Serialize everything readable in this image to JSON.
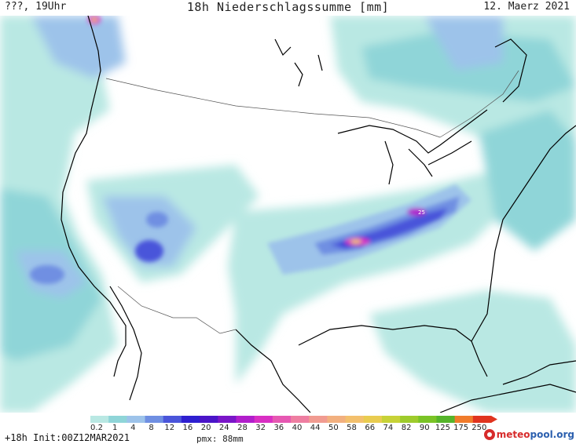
{
  "header": {
    "left": "???, 19Uhr",
    "title": "18h Niederschlagssumme [mm]",
    "date": "12. Maerz 2021"
  },
  "map": {
    "cell_label": "25"
  },
  "legend": {
    "labels": [
      "0.2",
      "1",
      "4",
      "8",
      "12",
      "16",
      "20",
      "24",
      "28",
      "32",
      "36",
      "40",
      "44",
      "50",
      "58",
      "66",
      "74",
      "82",
      "90",
      "125",
      "175",
      "250"
    ],
    "colors": [
      "#b9e8e3",
      "#8fd5d8",
      "#9dc3ea",
      "#6f8fe2",
      "#4a55da",
      "#2e1fd0",
      "#4a14c8",
      "#7a16c8",
      "#b11ecb",
      "#d92fc3",
      "#e658b2",
      "#ee7ea1",
      "#f19b91",
      "#f2b07f",
      "#f3c06d",
      "#e9cc50",
      "#c7d237",
      "#9ecb2c",
      "#7ac326",
      "#55b42a",
      "#f07b2b",
      "#e0341f"
    ]
  },
  "footer": {
    "init": "+18h Init:00Z12MAR2021",
    "pmx": "pmx: 88mm",
    "logo_word1": "meteo",
    "logo_word2": "pool.org"
  }
}
